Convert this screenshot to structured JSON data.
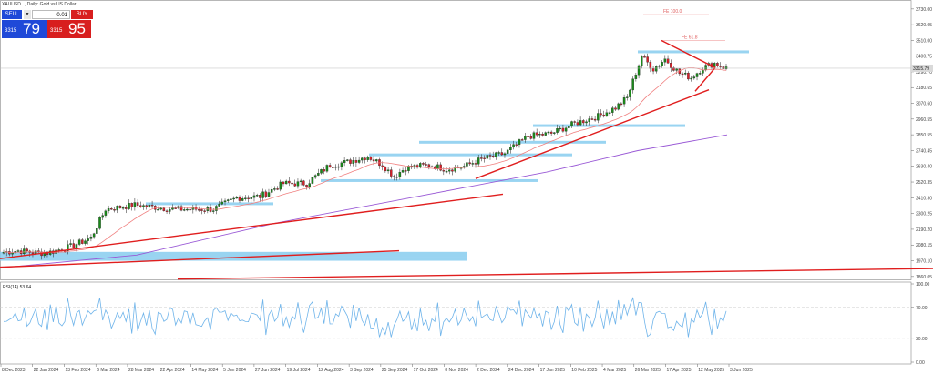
{
  "trade_panel": {
    "header": "XAUUSD..., Daily: Gold vs US Dollar",
    "sell_label": "SELL",
    "buy_label": "BUY",
    "lot": "0.01",
    "dropdown_glyph": "▾",
    "sell_price_small": "3315",
    "sell_price_big": "79",
    "buy_price_small": "3315",
    "buy_price_big": "95"
  },
  "colors": {
    "bull": "#1a8a1a",
    "bear": "#d8202a",
    "zone": "#87cdee",
    "trend": "#e01e1e",
    "ma_fast": "#f08080",
    "ma_slow": "#9a5ad6",
    "rsi": "#6fb4ea",
    "grid": "#cccccc"
  },
  "chart_data": {
    "type": "candlestick",
    "symbol": "XAUUSD",
    "timeframe": "Daily",
    "title": "XAUUSD..., Daily: Gold vs US Dollar",
    "price_axis_ticks": [
      "3730.00",
      "3620.05",
      "3510.00",
      "3400.75",
      "3290.70",
      "3180.65",
      "3070.60",
      "2960.55",
      "2850.55",
      "2740.45",
      "2630.40",
      "2520.35",
      "2410.30",
      "2300.25",
      "2190.20",
      "2080.15",
      "1970.10",
      "1860.05"
    ],
    "ylim": [
      1840,
      3780
    ],
    "date_axis_ticks": [
      "8 Dec 2023",
      "22 Jan 2024",
      "13 Feb 2024",
      "6 Mar 2024",
      "28 Mar 2024",
      "22 Apr 2024",
      "14 May 2024",
      "5 Jun 2024",
      "27 Jun 2024",
      "19 Jul 2024",
      "12 Aug 2024",
      "3 Sep 2024",
      "25 Sep 2024",
      "17 Oct 2024",
      "8 Nov 2024",
      "2 Dec 2024",
      "24 Dec 2024",
      "17 Jan 2025",
      "10 Feb 2025",
      "4 Mar 2025",
      "26 Mar 2025",
      "17 Apr 2025",
      "12 May 2025",
      "3 Jun 2025"
    ],
    "current_price_label": "3315.79",
    "anchors": [
      [
        0,
        2030
      ],
      [
        5,
        2040
      ],
      [
        12,
        2025
      ],
      [
        15,
        2025
      ],
      [
        23,
        2070
      ],
      [
        30,
        2130
      ],
      [
        35,
        2330
      ],
      [
        45,
        2360
      ],
      [
        58,
        2330
      ],
      [
        72,
        2330
      ],
      [
        80,
        2410
      ],
      [
        88,
        2420
      ],
      [
        96,
        2510
      ],
      [
        104,
        2510
      ],
      [
        112,
        2640
      ],
      [
        118,
        2660
      ],
      [
        125,
        2700
      ],
      [
        130,
        2640
      ],
      [
        134,
        2560
      ],
      [
        138,
        2620
      ],
      [
        146,
        2640
      ],
      [
        152,
        2610
      ],
      [
        158,
        2630
      ],
      [
        164,
        2680
      ],
      [
        172,
        2720
      ],
      [
        180,
        2840
      ],
      [
        188,
        2860
      ],
      [
        196,
        2930
      ],
      [
        204,
        2980
      ],
      [
        210,
        3040
      ],
      [
        214,
        3110
      ],
      [
        219,
        3400
      ],
      [
        223,
        3310
      ],
      [
        227,
        3380
      ],
      [
        232,
        3280
      ],
      [
        236,
        3250
      ],
      [
        240,
        3320
      ],
      [
        244,
        3350
      ],
      [
        248,
        3315
      ]
    ],
    "bar_count": 249,
    "trend_lines": [
      {
        "x": [
          0,
          552
        ],
        "y": [
          1985,
          2435
        ]
      },
      {
        "x": [
          0,
          438
        ],
        "y": [
          1925,
          2040
        ]
      },
      {
        "x": [
          522,
          778
        ],
        "y": [
          2545,
          3165
        ]
      },
      {
        "x": [
          726,
          785
        ],
        "y": [
          3510,
          3320
        ]
      },
      {
        "x": [
          763,
          785
        ],
        "y": [
          3155,
          3320
        ]
      },
      {
        "x": [
          195,
          1024
        ],
        "y": [
          1842,
          1916
        ]
      }
    ],
    "zones": [
      {
        "x": [
          0,
          512
        ],
        "y": [
          1996,
          2032
        ]
      },
      {
        "x": [
          0,
          512
        ],
        "y": [
          1970,
          1996
        ]
      },
      {
        "x": [
          352,
          590
        ],
        "y": [
          2530,
          2540
        ]
      },
      {
        "x": [
          405,
          628
        ],
        "y": [
          2710,
          2720
        ]
      },
      {
        "x": [
          460,
          665
        ],
        "y": [
          2798,
          2808
        ]
      },
      {
        "x": [
          585,
          752
        ],
        "y": [
          2915,
          2924
        ]
      },
      {
        "x": [
          700,
          822
        ],
        "y": [
          3432,
          3440
        ]
      },
      {
        "x": [
          160,
          300
        ],
        "y": [
          2370,
          2378
        ]
      }
    ],
    "fib_levels": [
      {
        "label": "FE 100.0",
        "price": 3690,
        "x": [
          706,
          778
        ]
      },
      {
        "label": "FE 61.8",
        "price": 3510,
        "x": [
          726,
          796
        ]
      }
    ],
    "ma_slow": [
      [
        0,
        1920
      ],
      [
        150,
        2010
      ],
      [
        300,
        2230
      ],
      [
        450,
        2410
      ],
      [
        600,
        2590
      ],
      [
        700,
        2740
      ],
      [
        798,
        2850
      ]
    ],
    "rsi": {
      "label": "RSI(14) 53.64",
      "ticks": [
        "100.00",
        "70.00",
        "30.00",
        "0.00"
      ],
      "levels": [
        70,
        30
      ],
      "ylim": [
        0,
        100
      ]
    }
  }
}
